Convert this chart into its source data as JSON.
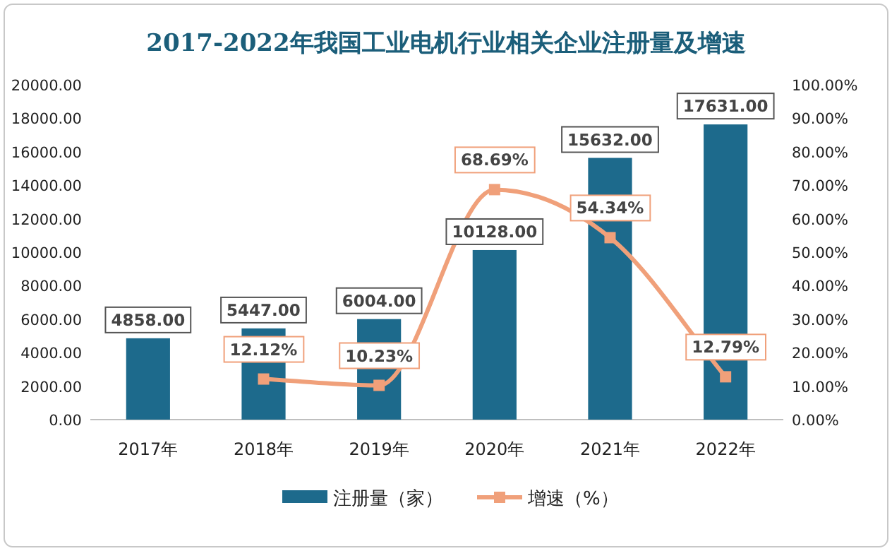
{
  "chart_data": {
    "type": "bar",
    "title": "2017-2022年我国工业电机行业相关企业注册量及增速",
    "categories": [
      "2017年",
      "2018年",
      "2019年",
      "2020年",
      "2021年",
      "2022年"
    ],
    "series": [
      {
        "name": "注册量（家）",
        "color": "#1d6a8c",
        "values": [
          4858,
          5447,
          6004,
          10128,
          15632,
          17631
        ],
        "value_labels": [
          "4858.00",
          "5447.00",
          "6004.00",
          "10128.00",
          "15632.00",
          "17631.00"
        ]
      },
      {
        "name": "增速（%）",
        "type": "line",
        "axis": "y2",
        "color": "#f0a07a",
        "marker": "square",
        "values": [
          null,
          12.12,
          10.23,
          68.69,
          54.34,
          12.79
        ],
        "value_labels": [
          null,
          "12.12%",
          "10.23%",
          "68.69%",
          "54.34%",
          "12.79%"
        ]
      }
    ],
    "ylim": [
      0,
      20000
    ],
    "yticks": [
      {
        "value": 0,
        "label": "0.00"
      },
      {
        "value": 2000,
        "label": "2000.00"
      },
      {
        "value": 4000,
        "label": "4000.00"
      },
      {
        "value": 6000,
        "label": "6000.00"
      },
      {
        "value": 8000,
        "label": "8000.00"
      },
      {
        "value": 10000,
        "label": "10000.00"
      },
      {
        "value": 12000,
        "label": "12000.00"
      },
      {
        "value": 14000,
        "label": "14000.00"
      },
      {
        "value": 16000,
        "label": "16000.00"
      },
      {
        "value": 18000,
        "label": "18000.00"
      },
      {
        "value": 20000,
        "label": "20000.00"
      }
    ],
    "y2lim": [
      0,
      100
    ],
    "y2ticks": [
      {
        "value": 0,
        "label": "0.00%"
      },
      {
        "value": 10,
        "label": "10.00%"
      },
      {
        "value": 20,
        "label": "20.00%"
      },
      {
        "value": 30,
        "label": "30.00%"
      },
      {
        "value": 40,
        "label": "40.00%"
      },
      {
        "value": 50,
        "label": "50.00%"
      },
      {
        "value": 60,
        "label": "60.00%"
      },
      {
        "value": 70,
        "label": "70.00%"
      },
      {
        "value": 80,
        "label": "80.00%"
      },
      {
        "value": 90,
        "label": "90.00%"
      },
      {
        "value": 100,
        "label": "100.00%"
      }
    ],
    "grid": false,
    "legend": "bottom"
  }
}
